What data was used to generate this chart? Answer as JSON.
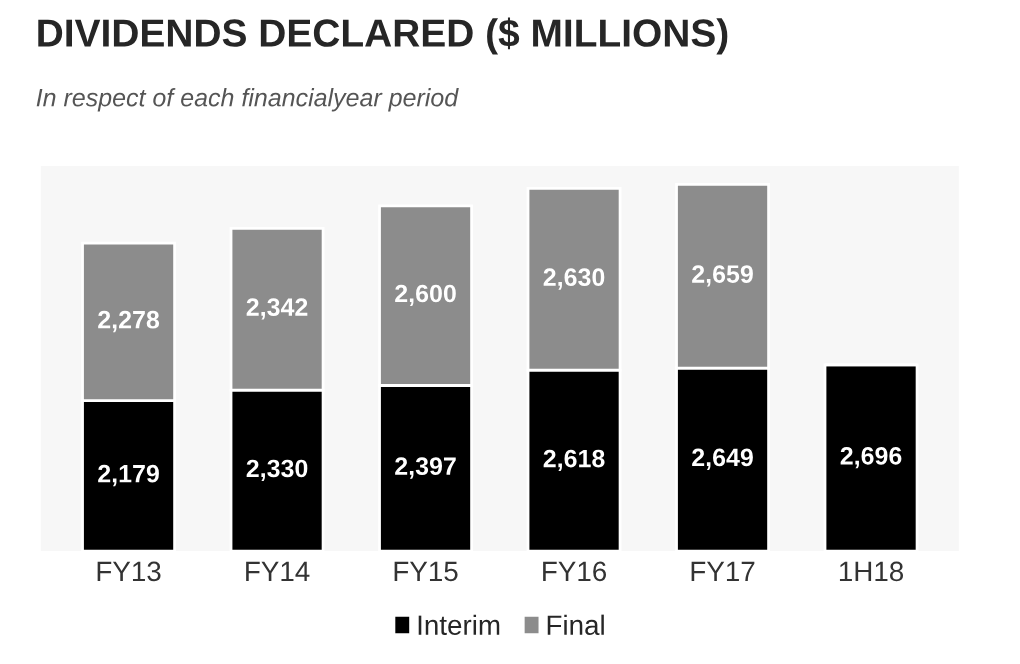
{
  "chart_data": {
    "type": "bar",
    "title": "DIVIDENDS DECLARED ($ MILLIONS)",
    "subtitle": "In respect of each financialyear period",
    "categories": [
      "FY13",
      "FY14",
      "FY15",
      "FY16",
      "FY17",
      "1H18"
    ],
    "stacked": true,
    "legend": "bottom",
    "grid": false,
    "series": [
      {
        "name": "Interim",
        "color": "#000000",
        "values": [
          2179,
          2330,
          2397,
          2618,
          2649,
          2696
        ],
        "value_labels": [
          "2,179",
          "2,330",
          "2,397",
          "2,618",
          "2,649",
          "2,696"
        ]
      },
      {
        "name": "Final",
        "color": "#8c8c8c",
        "values": [
          2278,
          2342,
          2600,
          2630,
          2659,
          null
        ],
        "value_labels": [
          "2,278",
          "2,342",
          "2,600",
          "2,630",
          "2,659",
          null
        ]
      }
    ]
  }
}
